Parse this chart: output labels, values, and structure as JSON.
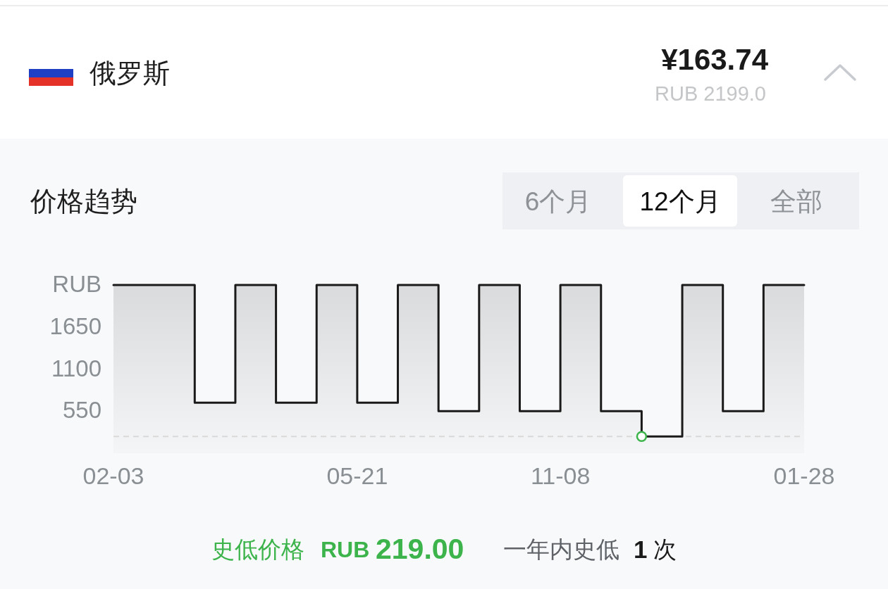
{
  "chart_data": {
    "type": "step",
    "title": "价格趋势",
    "categories": [
      "02-03",
      null,
      null,
      null,
      null,
      null,
      "05-21",
      null,
      null,
      null,
      null,
      "11-08",
      null,
      null,
      null,
      null,
      null,
      "01-28"
    ],
    "series": [
      {
        "type": "area",
        "color": "#d8d9db",
        "values": [
          2199,
          2199,
          660,
          2199,
          660,
          2199,
          660,
          2199,
          550,
          2199,
          550,
          2199,
          550,
          219,
          2199,
          550,
          2199,
          2199
        ]
      },
      {
        "type": "step",
        "color": "#1a1a1a",
        "values": [
          2199,
          2199,
          660,
          2199,
          660,
          2199,
          660,
          2199,
          550,
          2199,
          550,
          2199,
          550,
          219,
          2199,
          550,
          2199,
          2199
        ]
      },
      {
        "type": "scatter",
        "color": "#3cb44b",
        "marker": "circle",
        "values": [
          null,
          null,
          null,
          null,
          null,
          null,
          null,
          null,
          null,
          null,
          null,
          null,
          null,
          219,
          null,
          null,
          null,
          null
        ]
      }
    ],
    "ylim": [
      0,
      2200
    ],
    "yticks": [
      550,
      1100,
      1650,
      {
        "value": 2200,
        "label": "RUB"
      }
    ],
    "ref_lines": [
      {
        "axis": "y",
        "value": 219,
        "color": "#d9d9d9",
        "line_style": "dashed"
      }
    ],
    "annotations": [
      "俄罗斯",
      "¥163.74",
      "RUB 2199.0",
      "6个月",
      "12个月",
      "全部",
      "史低价格",
      "RUB",
      "219.00",
      "一年内史低",
      "1",
      "次"
    ]
  }
}
